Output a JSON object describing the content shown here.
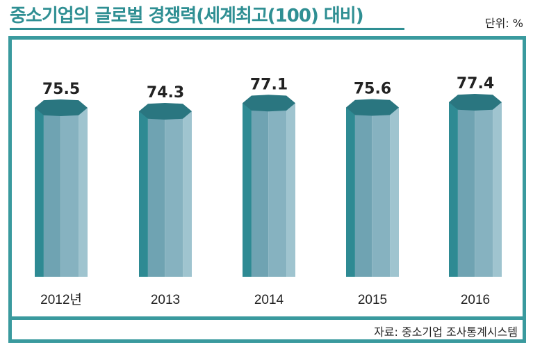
{
  "header": {
    "title": "중소기업의 글로벌 경쟁력(세계최고(100) 대비)",
    "unit": "단위: %"
  },
  "footer": {
    "source": "자료: 중소기업 조사통계시스템"
  },
  "colors": {
    "accent": "#3a9a9e",
    "title": "#2f8f93",
    "column_dark": "#2e8a93",
    "column_mid": "#6fa3b2",
    "column_light": "#9fc4cf",
    "column_top": "#2a7680"
  },
  "chart_data": {
    "type": "bar",
    "title": "중소기업의 글로벌 경쟁력(세계최고(100) 대비)",
    "categories": [
      "2012년",
      "2013",
      "2014",
      "2015",
      "2016"
    ],
    "values": [
      75.5,
      74.3,
      77.1,
      75.6,
      77.4
    ],
    "unit": "%",
    "grid": false,
    "legend": "none"
  }
}
